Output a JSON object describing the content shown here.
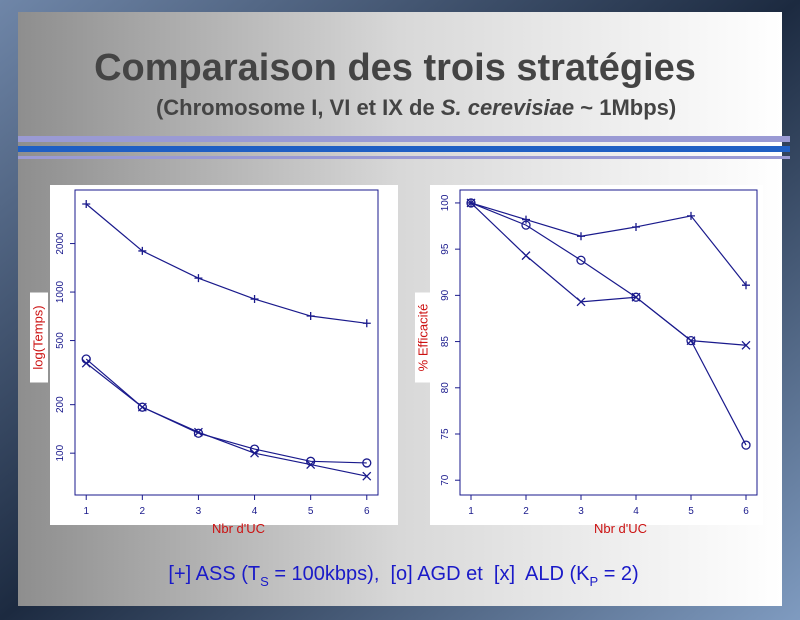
{
  "title": "Comparaison des trois stratégies",
  "subtitle": [
    "(Chromosome I, VI et IX de ",
    "S. cerevisiae",
    " ~ 1Mbps)"
  ],
  "caption": [
    "[+] ASS (T",
    "S",
    " = 100kbps),  [o] AGD et  [x]  ALD (K",
    "P",
    " = 2)"
  ],
  "chart_data": [
    {
      "type": "line",
      "xlabel": "Nbr d'UC",
      "ylabel": "log(Temps)",
      "ylog": true,
      "x": [
        1,
        2,
        3,
        4,
        5,
        6
      ],
      "xlim": [
        0.8,
        6.2
      ],
      "xticks": [
        1,
        2,
        3,
        4,
        5,
        6
      ],
      "ylim": [
        55,
        4300
      ],
      "yticks": [
        100,
        200,
        500,
        1000,
        2000
      ],
      "series": [
        {
          "marker": "+",
          "color": "#1a1a8c",
          "values": [
            3520,
            1800,
            1220,
            905,
            710,
            640
          ]
        },
        {
          "marker": "o",
          "color": "#1a1a8c",
          "values": [
            384,
            193,
            133,
            106,
            89,
            87
          ]
        },
        {
          "marker": "x",
          "color": "#1a1a8c",
          "values": [
            362,
            193,
            135,
            100,
            85,
            72
          ]
        }
      ]
    },
    {
      "type": "line",
      "xlabel": "Nbr d'UC",
      "ylabel": "% Efficacité",
      "ylog": false,
      "x": [
        1,
        2,
        3,
        4,
        5,
        6
      ],
      "xlim": [
        0.8,
        6.2
      ],
      "xticks": [
        1,
        2,
        3,
        4,
        5,
        6
      ],
      "ylim": [
        68.4,
        101.4
      ],
      "yticks": [
        70,
        75,
        80,
        85,
        90,
        95,
        100
      ],
      "series": [
        {
          "marker": "+",
          "color": "#1a1a8c",
          "values": [
            100,
            98.2,
            96.4,
            97.4,
            98.6,
            91.1
          ]
        },
        {
          "marker": "o",
          "color": "#1a1a8c",
          "values": [
            100,
            97.6,
            93.8,
            89.8,
            85.1,
            73.8
          ]
        },
        {
          "marker": "x",
          "color": "#1a1a8c",
          "values": [
            100,
            94.3,
            89.3,
            89.8,
            85.1,
            84.6
          ]
        }
      ]
    }
  ]
}
